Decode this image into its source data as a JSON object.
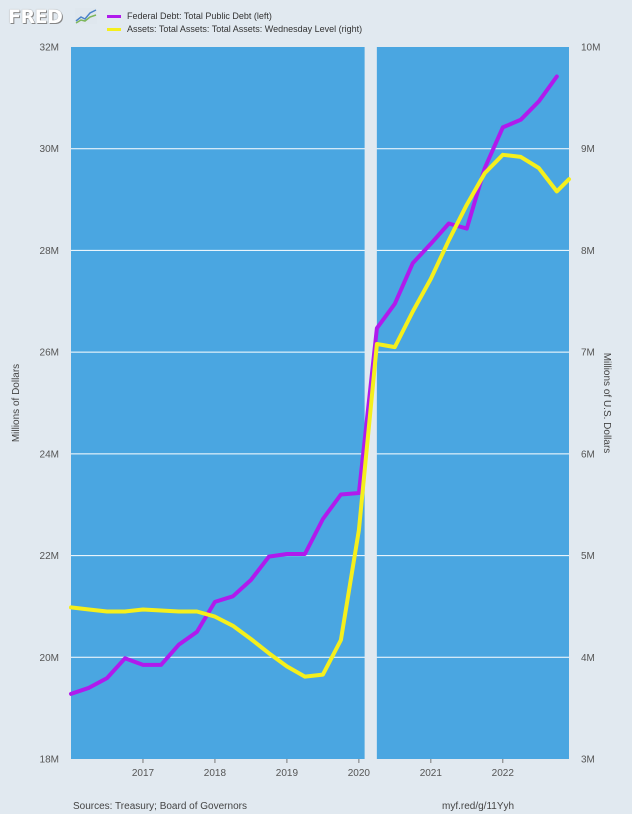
{
  "header": {
    "logo_text": "FRED"
  },
  "footer": {
    "source": "Sources: Treasury; Board of Governors",
    "url": "myf.red/g/11Yyh"
  },
  "chart_data": {
    "type": "line",
    "title": "",
    "legend_placement": "top-left",
    "grid": true,
    "y_left": {
      "label": "Millions of Dollars",
      "range": [
        18000000,
        32000000
      ],
      "ticks": [
        "18M",
        "20M",
        "22M",
        "24M",
        "26M",
        "28M",
        "30M",
        "32M"
      ]
    },
    "y_right": {
      "label": "Millions of U.S. Dollars",
      "range": [
        3000000,
        10000000
      ],
      "ticks": [
        "3M",
        "4M",
        "5M",
        "6M",
        "7M",
        "8M",
        "9M",
        "10M"
      ]
    },
    "x_range": [
      2016.0,
      2022.92
    ],
    "x_ticks": [
      "2017",
      "2018",
      "2019",
      "2020",
      "2021",
      "2022"
    ],
    "recession": {
      "start": 2020.08,
      "end": 2020.25
    },
    "series": [
      {
        "name": "Federal Debt: Total Public Debt (left)",
        "color": "#b01aed",
        "axis": "left",
        "x": [
          2016.0,
          2016.25,
          2016.5,
          2016.75,
          2017.0,
          2017.25,
          2017.5,
          2017.75,
          2018.0,
          2018.25,
          2018.5,
          2018.75,
          2019.0,
          2019.25,
          2019.5,
          2019.75,
          2020.0,
          2020.25,
          2020.5,
          2020.75,
          2021.0,
          2021.25,
          2021.5,
          2021.75,
          2022.0,
          2022.25,
          2022.5,
          2022.75
        ],
        "values": [
          19280000,
          19400000,
          19590000,
          19980000,
          19850000,
          19850000,
          20250000,
          20500000,
          21090000,
          21200000,
          21520000,
          21980000,
          22030000,
          22030000,
          22720000,
          23200000,
          23230000,
          26470000,
          26950000,
          27750000,
          28130000,
          28530000,
          28430000,
          29620000,
          30420000,
          30570000,
          30930000,
          31420000
        ]
      },
      {
        "name": "Assets: Total Assets: Total Assets: Wednesday Level (right)",
        "color": "#f5ef1c",
        "axis": "right",
        "x": [
          2016.0,
          2016.25,
          2016.5,
          2016.75,
          2017.0,
          2017.25,
          2017.5,
          2017.75,
          2018.0,
          2018.25,
          2018.5,
          2018.75,
          2019.0,
          2019.25,
          2019.5,
          2019.75,
          2020.0,
          2020.25,
          2020.5,
          2020.75,
          2021.0,
          2021.25,
          2021.5,
          2021.75,
          2022.0,
          2022.25,
          2022.5,
          2022.75,
          2022.92
        ],
        "values": [
          4490000,
          4470000,
          4450000,
          4450000,
          4470000,
          4460000,
          4450000,
          4450000,
          4400000,
          4310000,
          4180000,
          4040000,
          3910000,
          3810000,
          3830000,
          4170000,
          5250000,
          7080000,
          7050000,
          7400000,
          7720000,
          8100000,
          8450000,
          8760000,
          8940000,
          8920000,
          8810000,
          8580000,
          8700000
        ]
      }
    ]
  }
}
